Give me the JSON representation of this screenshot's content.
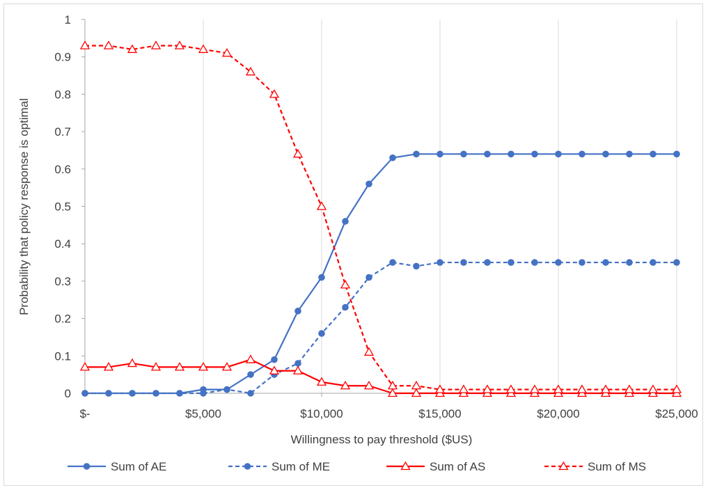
{
  "chart_data": {
    "type": "line",
    "title": "",
    "xlabel": "Willingness to pay threshold ($US)",
    "ylabel": "Probability that policy response is optimal",
    "xlim": [
      0,
      25000
    ],
    "ylim": [
      0,
      1
    ],
    "x": [
      0,
      1000,
      2000,
      3000,
      4000,
      5000,
      6000,
      7000,
      8000,
      9000,
      10000,
      11000,
      12000,
      13000,
      14000,
      15000,
      16000,
      17000,
      18000,
      19000,
      20000,
      21000,
      22000,
      23000,
      24000,
      25000
    ],
    "x_ticks": [
      {
        "value": 0,
        "label": "$-"
      },
      {
        "value": 5000,
        "label": "$5,000"
      },
      {
        "value": 10000,
        "label": "$10,000"
      },
      {
        "value": 15000,
        "label": "$15,000"
      },
      {
        "value": 20000,
        "label": "$20,000"
      },
      {
        "value": 25000,
        "label": "$25,000"
      }
    ],
    "y_ticks": [
      {
        "value": 0,
        "label": "0"
      },
      {
        "value": 0.1,
        "label": "0.1"
      },
      {
        "value": 0.2,
        "label": "0.2"
      },
      {
        "value": 0.3,
        "label": "0.3"
      },
      {
        "value": 0.4,
        "label": "0.4"
      },
      {
        "value": 0.5,
        "label": "0.5"
      },
      {
        "value": 0.6,
        "label": "0.6"
      },
      {
        "value": 0.7,
        "label": "0.7"
      },
      {
        "value": 0.8,
        "label": "0.8"
      },
      {
        "value": 0.9,
        "label": "0.9"
      },
      {
        "value": 1,
        "label": "1"
      }
    ],
    "grid": "vertical",
    "legend_position": "bottom",
    "series": [
      {
        "name": "Sum of AE",
        "color": "#4472c4",
        "dash": "solid",
        "marker": "circle",
        "values": [
          0,
          0,
          0,
          0,
          0,
          0.01,
          0.01,
          0.05,
          0.09,
          0.22,
          0.31,
          0.46,
          0.56,
          0.63,
          0.64,
          0.64,
          0.64,
          0.64,
          0.64,
          0.64,
          0.64,
          0.64,
          0.64,
          0.64,
          0.64,
          0.64
        ]
      },
      {
        "name": "Sum of ME",
        "color": "#4472c4",
        "dash": "dashed",
        "marker": "circle",
        "values": [
          0,
          0,
          0,
          0,
          0,
          0,
          0.01,
          0,
          0.05,
          0.08,
          0.16,
          0.23,
          0.31,
          0.35,
          0.34,
          0.35,
          0.35,
          0.35,
          0.35,
          0.35,
          0.35,
          0.35,
          0.35,
          0.35,
          0.35,
          0.35
        ]
      },
      {
        "name": "Sum of AS",
        "color": "#ff0000",
        "dash": "solid",
        "marker": "triangle",
        "values": [
          0.07,
          0.07,
          0.08,
          0.07,
          0.07,
          0.07,
          0.07,
          0.09,
          0.06,
          0.06,
          0.03,
          0.02,
          0.02,
          0,
          0,
          0,
          0,
          0,
          0,
          0,
          0,
          0,
          0,
          0,
          0,
          0
        ]
      },
      {
        "name": "Sum of MS",
        "color": "#ff0000",
        "dash": "dashed",
        "marker": "triangle",
        "values": [
          0.93,
          0.93,
          0.92,
          0.93,
          0.93,
          0.92,
          0.91,
          0.86,
          0.8,
          0.64,
          0.5,
          0.29,
          0.11,
          0.02,
          0.02,
          0.01,
          0.01,
          0.01,
          0.01,
          0.01,
          0.01,
          0.01,
          0.01,
          0.01,
          0.01,
          0.01
        ]
      }
    ]
  }
}
